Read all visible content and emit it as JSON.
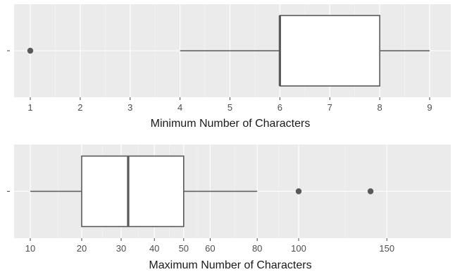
{
  "chart_data": [
    {
      "type": "boxplot",
      "xlabel": "Minimum Number of Characters",
      "xlim": [
        0.6,
        9.4
      ],
      "ticks": [
        1,
        2,
        3,
        4,
        5,
        6,
        7,
        8,
        9
      ],
      "minor_ticks": [
        1.5,
        2.5,
        3.5,
        4.5,
        5.5,
        6.5,
        7.5,
        8.5
      ],
      "box": {
        "whisker_low": 4,
        "q1": 6,
        "median": 6,
        "q3": 8,
        "whisker_high": 9
      },
      "outliers": [
        1
      ]
    },
    {
      "type": "boxplot",
      "xlabel": "Maximum Number of Characters",
      "scale": "sqrt",
      "xlim": [
        5,
        150
      ],
      "ticks": [
        10,
        20,
        30,
        40,
        50,
        60,
        80,
        100,
        150
      ],
      "minor_ticks": [
        15,
        25,
        35,
        45,
        55,
        70,
        90,
        125
      ],
      "box": {
        "whisker_low": 10,
        "q1": 20,
        "median": 32,
        "q3": 50,
        "whisker_high": 80
      },
      "outliers": [
        100,
        140
      ]
    }
  ]
}
